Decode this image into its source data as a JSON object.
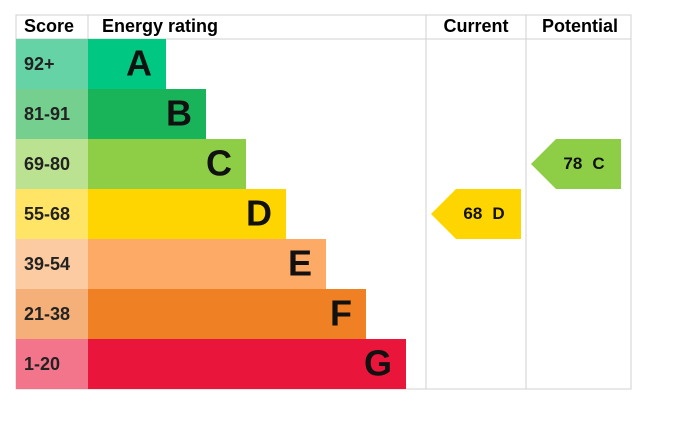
{
  "header": {
    "score": "Score",
    "rating": "Energy rating",
    "current": "Current",
    "potential": "Potential"
  },
  "bands": [
    {
      "range": "92+",
      "letter": "A",
      "color": "#00c781",
      "light": "#66d3a6"
    },
    {
      "range": "81-91",
      "letter": "B",
      "color": "#19b459",
      "light": "#75d08f"
    },
    {
      "range": "69-80",
      "letter": "C",
      "color": "#8dce46",
      "light": "#bbe290"
    },
    {
      "range": "55-68",
      "letter": "D",
      "color": "#ffd500",
      "light": "#ffe466"
    },
    {
      "range": "39-54",
      "letter": "E",
      "color": "#fcaa65",
      "light": "#fdcba2"
    },
    {
      "range": "21-38",
      "letter": "F",
      "color": "#ef8023",
      "light": "#f5b07a"
    },
    {
      "range": "1-20",
      "letter": "G",
      "color": "#e9153b",
      "light": "#f2758b"
    }
  ],
  "current": {
    "score": 68,
    "rating": "D"
  },
  "potential": {
    "score": 78,
    "rating": "C"
  }
}
